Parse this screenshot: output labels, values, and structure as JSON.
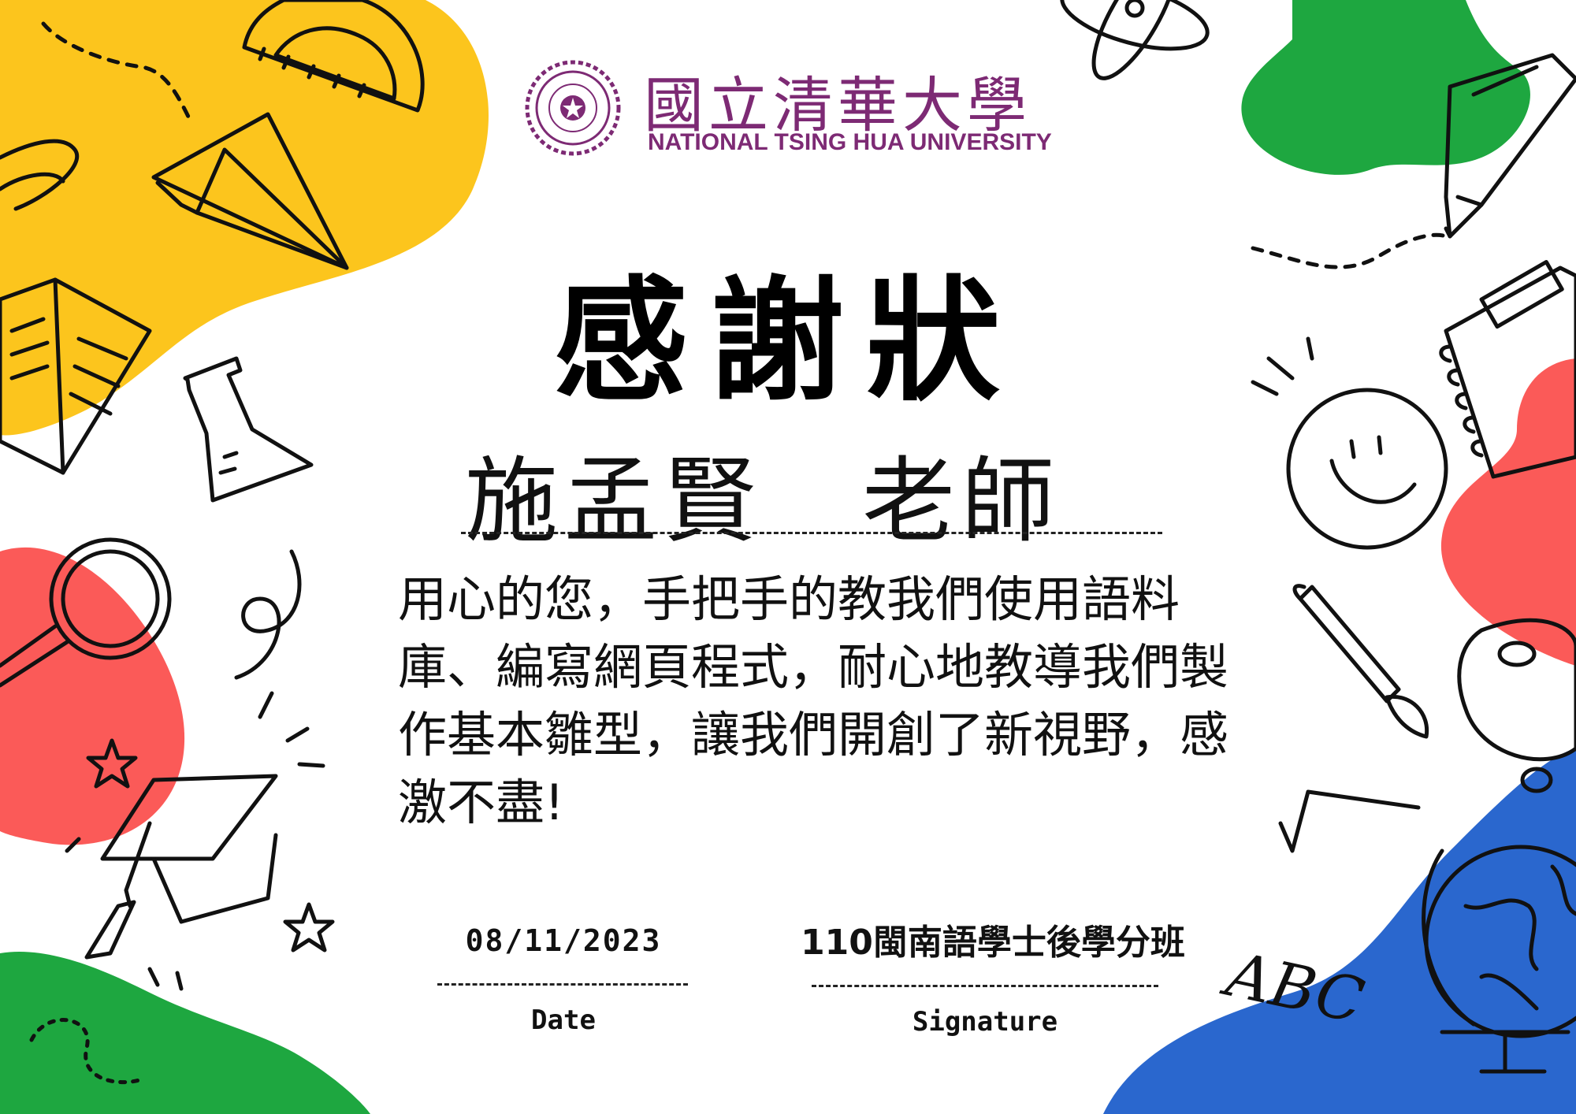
{
  "colors": {
    "yellow": "#fcc51d",
    "green": "#1ea740",
    "red": "#fb5a58",
    "blue": "#2a67ce",
    "university_purple": "#7d2a74"
  },
  "header": {
    "university_name_cn": "國立清華大學",
    "university_name_en": "NATIONAL TSING HUA UNIVERSITY",
    "seal_icon": "university-seal-icon"
  },
  "certificate": {
    "title": "感謝狀",
    "recipient": "施孟賢　老師",
    "message": "用心的您，手把手的教我們使用語料庫、編寫網頁程式，耐心地教導我們製作基本雛型，讓我們開創了新視野，感激不盡!"
  },
  "footer": {
    "date_value": "08/11/2023",
    "date_caption": "Date",
    "signature_value": "110閩南語學士後學分班",
    "signature_caption": "Signature"
  },
  "decorations": {
    "corner_text": "ABC",
    "icons": [
      "protractor-icon",
      "paper-plane-icon",
      "notebook-icon",
      "flask-icon",
      "magnifier-icon",
      "graduation-cap-icon",
      "star-icon",
      "atom-icon",
      "pencil-icon",
      "spiral-notebook-icon",
      "smiley-icon",
      "paintbrush-icon",
      "palette-icon",
      "globe-icon",
      "square-root-icon"
    ]
  }
}
